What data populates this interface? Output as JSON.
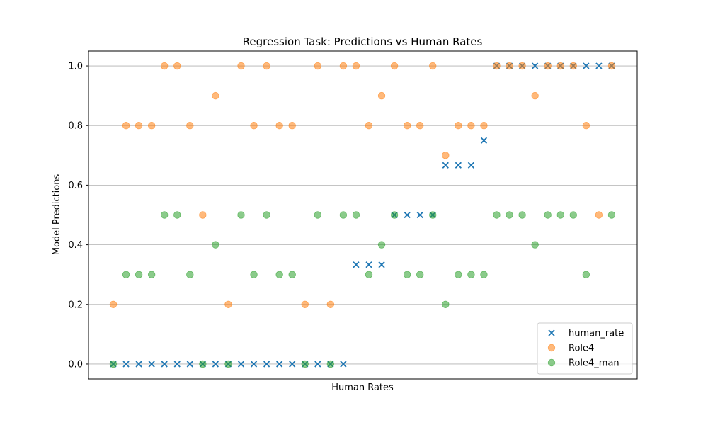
{
  "chart_data": {
    "type": "scatter",
    "title": "Regression Task: Predictions vs Human Rates",
    "xlabel": "Human Rates",
    "ylabel": "Model Predictions",
    "ylim": [
      -0.05,
      1.05
    ],
    "yticks": [
      "0.0",
      "0.2",
      "0.4",
      "0.6",
      "0.8",
      "1.0"
    ],
    "grid": "y",
    "legend_position": "lower-right",
    "series": [
      {
        "name": "human_rate",
        "marker": "x",
        "color": "#1f77b4",
        "values": [
          0,
          0,
          0,
          0,
          0,
          0,
          0,
          0,
          0,
          0,
          0,
          0,
          0,
          0,
          0,
          0,
          0,
          0,
          0,
          0.333,
          0.333,
          0.333,
          0.5,
          0.5,
          0.5,
          0.5,
          0.667,
          0.667,
          0.667,
          0.75,
          1,
          1,
          1,
          1,
          1,
          1,
          1,
          1,
          1,
          1
        ]
      },
      {
        "name": "Role4",
        "marker": "o",
        "color": "#ff7f0e",
        "values": [
          0.2,
          0.8,
          0.8,
          0.8,
          1,
          1,
          0.8,
          0.5,
          0.9,
          0.2,
          1,
          0.8,
          1,
          0.8,
          0.8,
          0.2,
          1,
          0.2,
          1,
          1,
          0.8,
          0.9,
          1,
          0.8,
          0.8,
          1,
          0.7,
          0.8,
          0.8,
          0.8,
          1,
          1,
          1,
          0.9,
          1,
          1,
          1,
          0.8,
          0.5,
          1
        ]
      },
      {
        "name": "Role4_man",
        "marker": "o",
        "color": "#2ca02c",
        "values": [
          0,
          0.3,
          0.3,
          0.3,
          0.5,
          0.5,
          0.3,
          0,
          0.4,
          0,
          0.5,
          0.3,
          0.5,
          0.3,
          0.3,
          0,
          0.5,
          0,
          0.5,
          0.5,
          0.3,
          0.4,
          0.5,
          0.3,
          0.3,
          0.5,
          0.2,
          0.3,
          0.3,
          0.3,
          0.5,
          0.5,
          0.5,
          0.4,
          0.5,
          0.5,
          0.5,
          0.3,
          null,
          0.5
        ]
      }
    ]
  }
}
